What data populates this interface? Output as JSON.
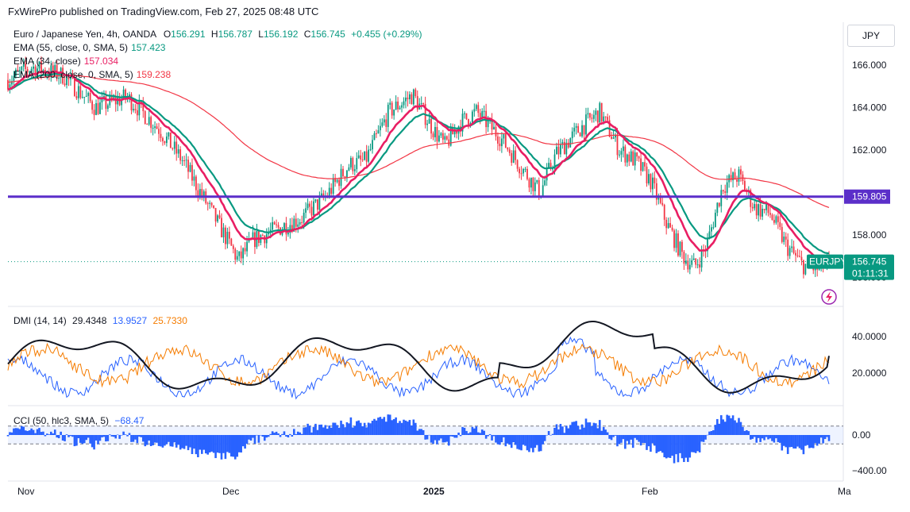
{
  "publisher_text": "FxWirePro published on TradingView.com, Feb 27, 2025 08:48 UTC",
  "currency_button": "JPY",
  "main_legend": {
    "symbol": "Euro / Japanese Yen, 4h, OANDA",
    "open_label": "O",
    "open": "156.291",
    "high_label": "H",
    "high": "156.787",
    "low_label": "L",
    "low": "156.192",
    "close_label": "C",
    "close": "156.745",
    "change": "+0.455 (+0.29%)"
  },
  "indicators": [
    {
      "label": "EMA (55, close, 0, SMA, 5)",
      "value": "157.423",
      "color": "#089981"
    },
    {
      "label": "EMA (34, close)",
      "value": "157.034",
      "color": "#e91e63"
    },
    {
      "label": "EMA (200, close, 0, SMA, 5)",
      "value": "159.238",
      "color": "#f23645"
    }
  ],
  "dmi_legend": {
    "label": "DMI (14, 14)",
    "adx": "29.4348",
    "plus_di": "13.9527",
    "minus_di": "25.7330"
  },
  "cci_legend": {
    "label": "CCI (50, hlc3, SMA, 5)",
    "value": "−68.47"
  },
  "price_axis_ticks": [
    "166.000",
    "164.000",
    "162.000",
    "158.000"
  ],
  "dmi_axis_ticks": [
    "40.0000",
    "20.0000"
  ],
  "cci_axis_ticks": [
    "0.00",
    "−400.00"
  ],
  "time_axis_labels": [
    "Nov",
    "Dec",
    "2025",
    "Feb",
    "Ma"
  ],
  "horizontal_level": {
    "value": "159.805",
    "color": "#5b2fc9"
  },
  "symbol_tag": "EURJPY",
  "price_tag": {
    "price": "156.745",
    "countdown": "01:11:31",
    "color": "#089981"
  },
  "partial_tick": "156.000",
  "colors": {
    "up": "#089981",
    "down": "#f23645",
    "ema55": "#089981",
    "ema34": "#e91e63",
    "ema200": "#f23645",
    "adx": "#131722",
    "plus_di": "#2962ff",
    "minus_di": "#f57c00",
    "cci": "#2962ff"
  },
  "chart_data": [
    {
      "type": "candlestick",
      "title": "Euro / Japanese Yen, 4h, OANDA",
      "x_labels": [
        "Nov",
        "Dec",
        "2025",
        "Feb",
        "Ma"
      ],
      "ylim": [
        155.5,
        166.8
      ],
      "horizontal_line": 159.805,
      "last_close": 156.745,
      "close_path": [
        {
          "x": "Nov",
          "y": 165.8
        },
        {
          "x": "mid-Nov",
          "y": 164.3
        },
        {
          "x": "late-Nov",
          "y": 161.0
        },
        {
          "x": "Dec",
          "y": 157.0
        },
        {
          "x": "mid-Dec",
          "y": 159.0
        },
        {
          "x": "late-Dec",
          "y": 164.5
        },
        {
          "x": "2025",
          "y": 163.2
        },
        {
          "x": "mid-Jan",
          "y": 163.0
        },
        {
          "x": "late-Jan",
          "y": 162.0
        },
        {
          "x": "Feb",
          "y": 160.5
        },
        {
          "x": "mid-Feb",
          "y": 157.0
        },
        {
          "x": "late-Feb",
          "y": 156.7
        }
      ],
      "series": [
        {
          "name": "EMA (55, close, 0, SMA, 5)",
          "last": 157.423
        },
        {
          "name": "EMA (34, close)",
          "last": 157.034
        },
        {
          "name": "EMA (200, close, 0, SMA, 5)",
          "last": 159.238
        }
      ]
    },
    {
      "type": "line",
      "title": "DMI (14, 14)",
      "ylim": [
        0,
        55
      ],
      "series": [
        {
          "name": "ADX",
          "last": 29.4348
        },
        {
          "name": "+DI",
          "last": 13.9527
        },
        {
          "name": "-DI",
          "last": 25.733
        }
      ]
    },
    {
      "type": "bar",
      "title": "CCI (50, hlc3, SMA, 5)",
      "ylim": [
        -480,
        230
      ],
      "last": -68.47
    }
  ]
}
